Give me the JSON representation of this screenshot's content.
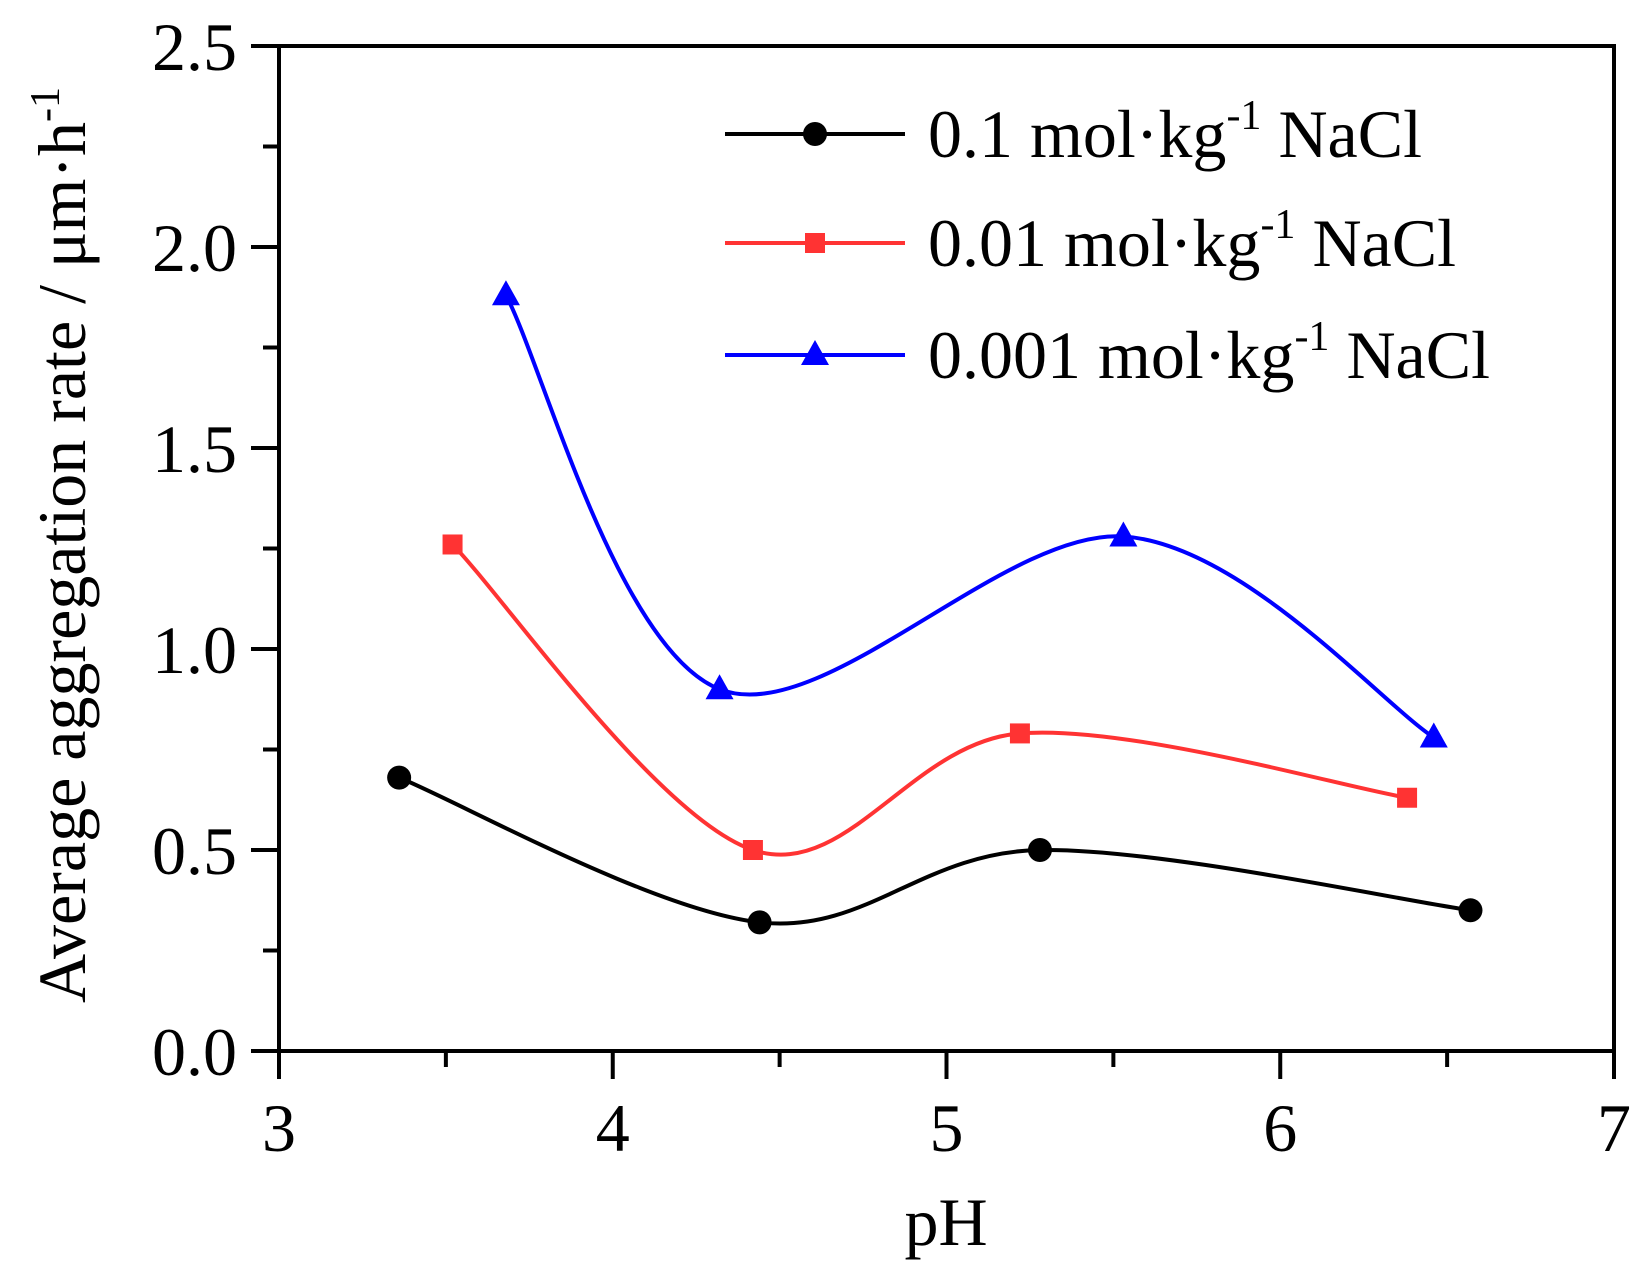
{
  "chart_data": {
    "type": "line",
    "title": "",
    "xlabel": "pH",
    "ylabel": "Average aggregation rate / μm·h",
    "ylabel_superscript": "-1",
    "xlim": [
      3,
      7
    ],
    "ylim": [
      0.0,
      2.5
    ],
    "x_ticks": [
      "3",
      "4",
      "5",
      "6",
      "7"
    ],
    "y_ticks": [
      "0.0",
      "0.5",
      "1.0",
      "1.5",
      "2.0",
      "2.5"
    ],
    "grid": false,
    "legend_position": "top-right",
    "series": [
      {
        "name": "0.1 mol·kg-1 NaCl",
        "label_main": "0.1 mol·kg",
        "label_sup": "-1",
        "label_tail": " NaCl",
        "color": "#000000",
        "marker": "circle",
        "x": [
          3.36,
          4.44,
          5.28,
          6.57
        ],
        "y": [
          0.68,
          0.32,
          0.5,
          0.35
        ]
      },
      {
        "name": "0.01 mol·kg-1 NaCl",
        "label_main": "0.01 mol·kg",
        "label_sup": "-1",
        "label_tail": " NaCl",
        "color": "#ff3333",
        "marker": "square",
        "x": [
          3.52,
          4.42,
          5.22,
          6.38
        ],
        "y": [
          1.26,
          0.5,
          0.79,
          0.63
        ]
      },
      {
        "name": "0.001 mol·kg-1 NaCl",
        "label_main": "0.001 mol·kg",
        "label_sup": "-1",
        "label_tail": " NaCl",
        "color": "#0000ff",
        "marker": "triangle",
        "x": [
          3.68,
          4.32,
          5.53,
          6.46
        ],
        "y": [
          1.88,
          0.9,
          1.28,
          0.78
        ]
      }
    ]
  }
}
